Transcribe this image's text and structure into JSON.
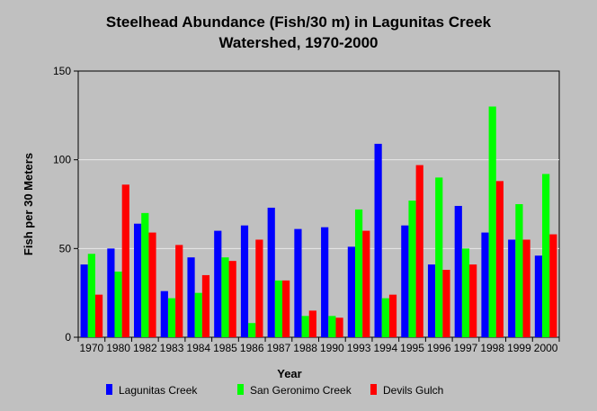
{
  "chart_data": {
    "type": "bar",
    "title_line1": "Steelhead Abundance (Fish/30 m) in Lagunitas Creek",
    "title_line2": "Watershed, 1970-2000",
    "xlabel": "Year",
    "ylabel": "Fish per 30 Meters",
    "ylim": [
      0,
      150
    ],
    "yticks": [
      0,
      50,
      100,
      150
    ],
    "grid": true,
    "legend_position": "bottom",
    "categories": [
      "1970",
      "1980",
      "1982",
      "1983",
      "1984",
      "1985",
      "1986",
      "1987",
      "1988",
      "1990",
      "1993",
      "1994",
      "1995",
      "1996",
      "1997",
      "1998",
      "1999",
      "2000"
    ],
    "series": [
      {
        "name": "Lagunitas Creek",
        "color": "#0000ff",
        "values": [
          41,
          50,
          64,
          26,
          45,
          60,
          63,
          73,
          61,
          62,
          51,
          109,
          63,
          41,
          74,
          59,
          55,
          46
        ]
      },
      {
        "name": "San Geronimo Creek",
        "color": "#00ff00",
        "values": [
          47,
          37,
          70,
          22,
          25,
          45,
          8,
          32,
          12,
          12,
          72,
          22,
          77,
          90,
          50,
          130,
          75,
          92
        ]
      },
      {
        "name": "Devils Gulch",
        "color": "#ff0000",
        "values": [
          24,
          86,
          59,
          52,
          35,
          43,
          55,
          32,
          15,
          11,
          60,
          24,
          97,
          38,
          41,
          88,
          55,
          58
        ]
      }
    ]
  }
}
